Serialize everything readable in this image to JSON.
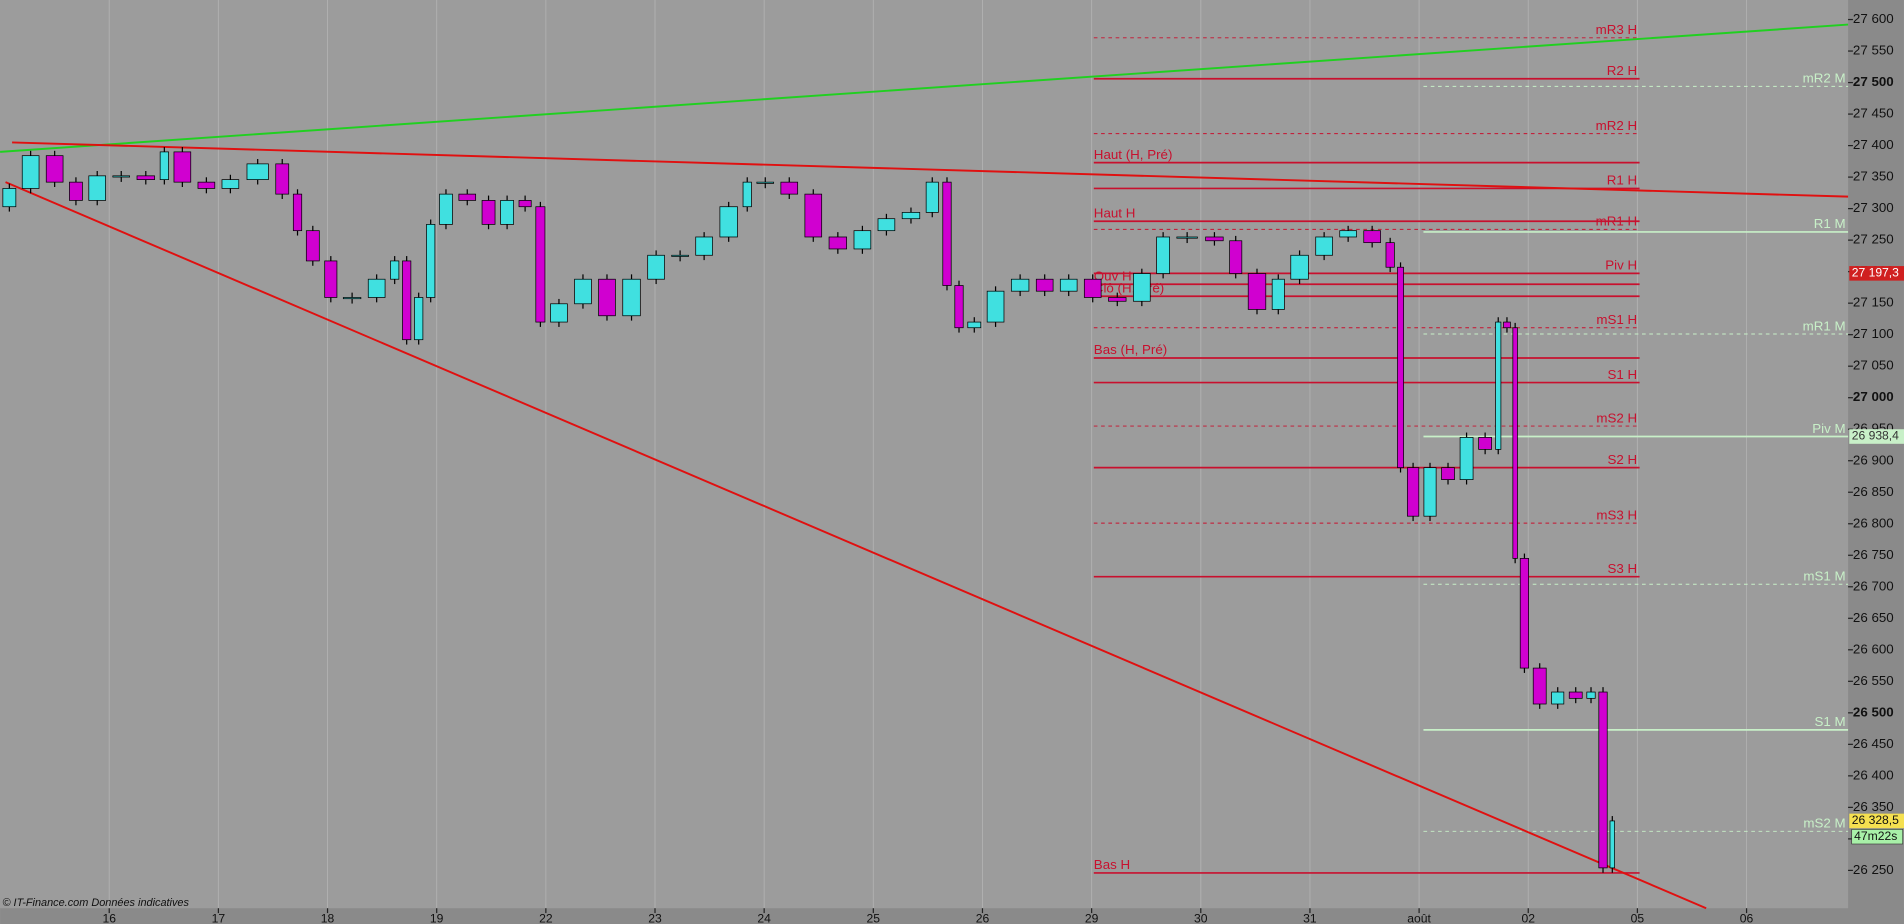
{
  "chart_data": {
    "type": "candlestick",
    "xlim": [
      -1.0,
      15.93
    ],
    "ylim": [
      26190,
      27631
    ],
    "xticks": [
      {
        "value": 0,
        "label": "16"
      },
      {
        "value": 1,
        "label": "17"
      },
      {
        "value": 2,
        "label": "18"
      },
      {
        "value": 3,
        "label": "19"
      },
      {
        "value": 4,
        "label": "22"
      },
      {
        "value": 5,
        "label": "23"
      },
      {
        "value": 6,
        "label": "24"
      },
      {
        "value": 7,
        "label": "25"
      },
      {
        "value": 8,
        "label": "26"
      },
      {
        "value": 9,
        "label": "29"
      },
      {
        "value": 10,
        "label": "30"
      },
      {
        "value": 11,
        "label": "31"
      },
      {
        "value": 12,
        "label": "août"
      },
      {
        "value": 13,
        "label": "02"
      },
      {
        "value": 14,
        "label": "05"
      },
      {
        "value": 15,
        "label": "06"
      }
    ],
    "yticks": [
      {
        "value": 27600,
        "label": "27 600"
      },
      {
        "value": 27550,
        "label": "27 550"
      },
      {
        "value": 27500,
        "label": "27 500"
      },
      {
        "value": 27450,
        "label": "27 450"
      },
      {
        "value": 27400,
        "label": "27 400"
      },
      {
        "value": 27350,
        "label": "27 350"
      },
      {
        "value": 27300,
        "label": "27 300"
      },
      {
        "value": 27250,
        "label": "27 250"
      },
      {
        "value": 27200,
        "label": "27 200"
      },
      {
        "value": 27150,
        "label": "27 150"
      },
      {
        "value": 27100,
        "label": "27 100"
      },
      {
        "value": 27050,
        "label": "27 050"
      },
      {
        "value": 27000,
        "label": "27 000"
      },
      {
        "value": 26950,
        "label": "26 950"
      },
      {
        "value": 26900,
        "label": "26 900"
      },
      {
        "value": 26850,
        "label": "26 850"
      },
      {
        "value": 26800,
        "label": "26 800"
      },
      {
        "value": 26750,
        "label": "26 750"
      },
      {
        "value": 26700,
        "label": "26 700"
      },
      {
        "value": 26650,
        "label": "26 650"
      },
      {
        "value": 26600,
        "label": "26 600"
      },
      {
        "value": 26550,
        "label": "26 550"
      },
      {
        "value": 26500,
        "label": "26 500"
      },
      {
        "value": 26450,
        "label": "26 450"
      },
      {
        "value": 26400,
        "label": "26 400"
      },
      {
        "value": 26350,
        "label": "26 350"
      },
      {
        "value": 26300,
        "label": "26 300"
      },
      {
        "value": 26250,
        "label": "26 250"
      }
    ],
    "grid": true,
    "up_color": "#40e0e0",
    "down_color": "#d000d0",
    "x": [
      -1.0,
      -0.83,
      -0.61,
      -0.39,
      -0.22,
      0,
      0.22,
      0.45,
      0.56,
      0.78,
      1.0,
      1.22,
      1.5,
      1.67,
      1.78,
      1.95,
      2.11,
      2.34,
      2.56,
      2.67,
      2.78,
      2.89,
      3.0,
      3.17,
      3.39,
      3.56,
      3.73,
      3.89,
      4.01,
      4.23,
      4.45,
      4.67,
      4.9,
      5.12,
      5.34,
      5.56,
      5.79,
      5.9,
      6.12,
      6.34,
      6.56,
      6.79,
      7.01,
      7.23,
      7.46,
      7.62,
      7.73,
      7.84,
      8.01,
      8.23,
      8.46,
      8.68,
      8.9,
      9.12,
      9.35,
      9.57,
      9.74,
      10.01,
      10.24,
      10.4,
      10.63,
      10.79,
      11.02,
      11.24,
      11.46,
      11.68,
      11.79,
      11.87,
      12.02,
      12.18,
      12.35,
      12.52,
      12.69,
      12.76,
      12.85,
      12.91,
      13.02,
      13.19,
      13.35,
      13.52,
      13.63,
      13.74,
      13.8
    ],
    "close": [
      27303,
      27332,
      27384,
      27342,
      27313,
      27352,
      27352,
      27346,
      27390,
      27342,
      27332,
      27346,
      27371,
      27323,
      27265,
      27217,
      27159,
      27159,
      27188,
      27217,
      27092,
      27159,
      27275,
      27323,
      27313,
      27275,
      27313,
      27303,
      27120,
      27149,
      27188,
      27130,
      27188,
      27226,
      27226,
      27255,
      27303,
      27342,
      27342,
      27323,
      27255,
      27236,
      27265,
      27284,
      27294,
      27342,
      27178,
      27111,
      27120,
      27169,
      27188,
      27169,
      27188,
      27159,
      27153,
      27197,
      27255,
      27255,
      27249,
      27197,
      27140,
      27188,
      27226,
      27255,
      27265,
      27246,
      27207,
      26889,
      26812,
      26889,
      26870,
      26937,
      26918,
      27120,
      27111,
      26745,
      26571,
      26514,
      26533,
      26523,
      26533,
      26254,
      26328.5
    ],
    "last_label": "26 328,5",
    "timer": "47m22s",
    "h_levels": {
      "x_range": [
        9.02,
        14.02
      ],
      "color": "#c8102e",
      "levels": [
        {
          "name": "mR3 H",
          "value": 27571,
          "dashed": true,
          "align": "right"
        },
        {
          "name": "R2 H",
          "value": 27506,
          "dashed": false,
          "align": "right"
        },
        {
          "name": "mR2 H",
          "value": 27419,
          "dashed": true,
          "align": "right"
        },
        {
          "name": "Haut (H, Pré)",
          "value": 27373,
          "dashed": false,
          "align": "left"
        },
        {
          "name": "R1 H",
          "value": 27332,
          "dashed": false,
          "align": "right"
        },
        {
          "name": "Haut H",
          "value": 27280,
          "dashed": false,
          "align": "left"
        },
        {
          "name": "mR1 H",
          "value": 27267,
          "dashed": true,
          "align": "right"
        },
        {
          "name": "Piv H",
          "value": 27197.3,
          "dashed": false,
          "align": "right",
          "tag": "27 197,3"
        },
        {
          "name": "Ouv H",
          "value": 27180,
          "dashed": false,
          "align": "left"
        },
        {
          "name": "Clô (H, Pré)",
          "value": 27161,
          "dashed": false,
          "align": "left"
        },
        {
          "name": "mS1 H",
          "value": 27111,
          "dashed": true,
          "align": "right"
        },
        {
          "name": "Bas (H, Pré)",
          "value": 27063,
          "dashed": false,
          "align": "left"
        },
        {
          "name": "S1 H",
          "value": 27024,
          "dashed": false,
          "align": "right"
        },
        {
          "name": "mS2 H",
          "value": 26955,
          "dashed": true,
          "align": "right"
        },
        {
          "name": "S2 H",
          "value": 26889,
          "dashed": false,
          "align": "right"
        },
        {
          "name": "mS3 H",
          "value": 26801,
          "dashed": true,
          "align": "right"
        },
        {
          "name": "S3 H",
          "value": 26716,
          "dashed": false,
          "align": "right"
        },
        {
          "name": "Bas H",
          "value": 26246,
          "dashed": false,
          "align": "left"
        }
      ]
    },
    "m_levels": {
      "x_range": [
        12.04,
        15.93
      ],
      "color": "#c8f0c8",
      "levels": [
        {
          "name": "mR2 M",
          "value": 27494,
          "dashed": true,
          "align": "right"
        },
        {
          "name": "R1 M",
          "value": 27263,
          "dashed": false,
          "align": "right"
        },
        {
          "name": "mR1 M",
          "value": 27101,
          "dashed": true,
          "align": "right"
        },
        {
          "name": "Piv M",
          "value": 26938.4,
          "dashed": false,
          "align": "right",
          "tag": "26 938,4"
        },
        {
          "name": "mS1 M",
          "value": 26704,
          "dashed": true,
          "align": "right"
        },
        {
          "name": "S1 M",
          "value": 26473,
          "dashed": false,
          "align": "right"
        },
        {
          "name": "mS2 M",
          "value": 26312,
          "dashed": true,
          "align": "right"
        }
      ]
    },
    "trendlines": [
      {
        "color": "#20d020",
        "x1": -1.0,
        "y1": 27390,
        "x2": 15.93,
        "y2": 27592
      },
      {
        "color": "#e01010",
        "x1": -0.89,
        "y1": 27405,
        "x2": 15.93,
        "y2": 27319
      },
      {
        "color": "#e01010",
        "x1": -0.95,
        "y1": 27342,
        "x2": 14.63,
        "y2": 26190
      }
    ],
    "footer": "© IT-Finance.com Données indicatives"
  }
}
